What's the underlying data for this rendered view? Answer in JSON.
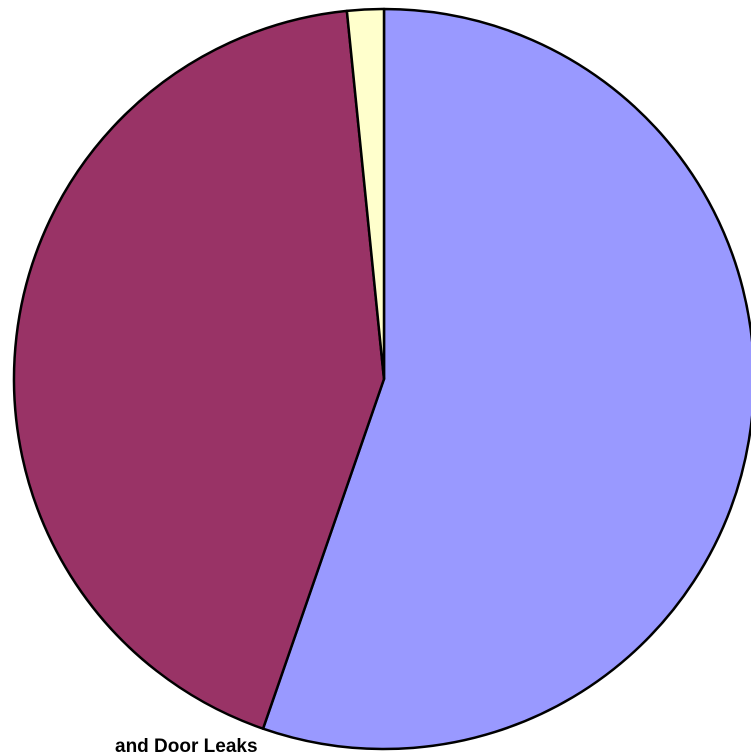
{
  "chart_data": {
    "type": "pie",
    "categories": [
      null,
      null,
      null
    ],
    "values": [
      55.3,
      43.1,
      1.6
    ],
    "colors": [
      "#9999ff",
      "#993366",
      "#ffffcc"
    ],
    "annotation": "and Door Leaks"
  }
}
